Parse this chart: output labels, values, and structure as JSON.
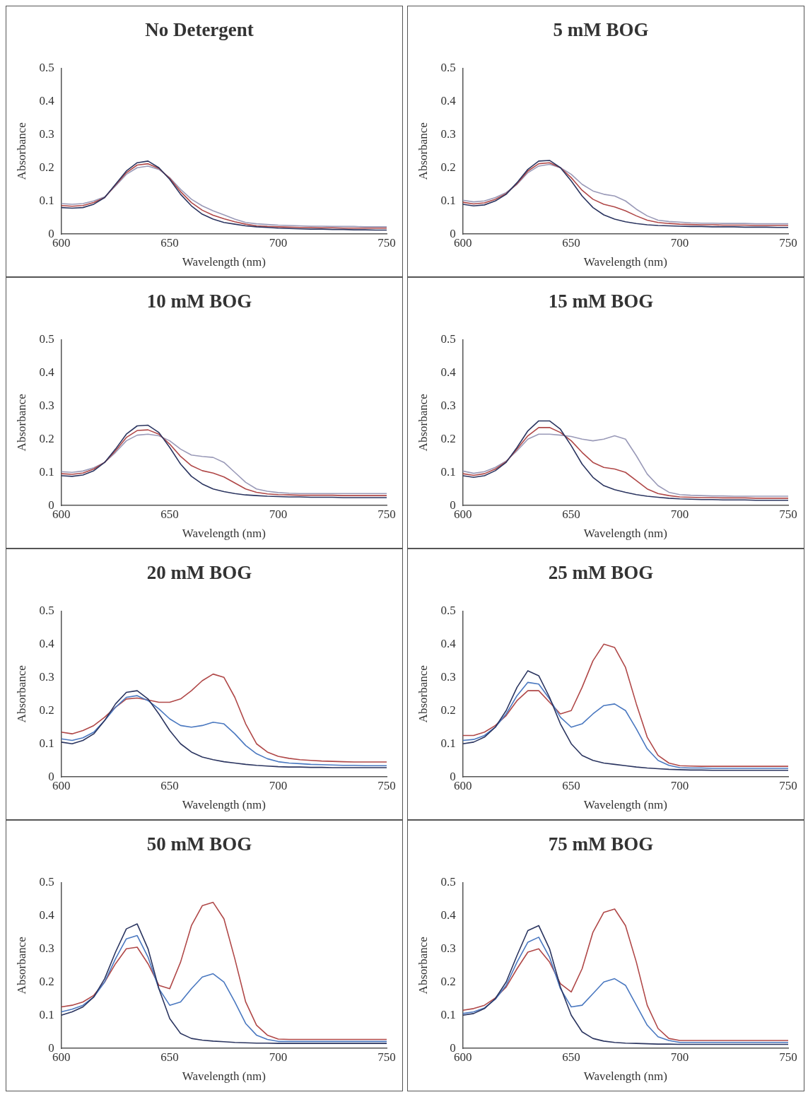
{
  "chart_data": [
    {
      "type": "line",
      "title": "No Detergent",
      "xlabel": "Wavelength (nm)",
      "ylabel": "Absorbance",
      "marker": "none",
      "xlim": [
        600,
        750
      ],
      "xticks": [
        600,
        650,
        700,
        750
      ],
      "ylim": [
        0,
        0.5
      ],
      "yticks": [
        0,
        0.1,
        0.2,
        0.3,
        0.4,
        0.5
      ],
      "x": [
        600,
        605,
        610,
        615,
        620,
        625,
        630,
        635,
        640,
        645,
        650,
        655,
        660,
        665,
        670,
        675,
        680,
        685,
        690,
        695,
        700,
        705,
        710,
        715,
        720,
        725,
        730,
        735,
        740,
        745,
        750
      ],
      "series": [
        {
          "color": "#2b3560",
          "values": [
            0.08,
            0.078,
            0.08,
            0.09,
            0.11,
            0.15,
            0.19,
            0.215,
            0.22,
            0.2,
            0.165,
            0.12,
            0.085,
            0.06,
            0.045,
            0.035,
            0.03,
            0.025,
            0.022,
            0.02,
            0.018,
            0.017,
            0.016,
            0.015,
            0.015,
            0.014,
            0.014,
            0.013,
            0.013,
            0.012,
            0.012
          ]
        },
        {
          "color": "#b04848",
          "values": [
            0.086,
            0.084,
            0.086,
            0.095,
            0.11,
            0.148,
            0.185,
            0.208,
            0.212,
            0.198,
            0.168,
            0.128,
            0.095,
            0.072,
            0.057,
            0.046,
            0.037,
            0.03,
            0.025,
            0.023,
            0.022,
            0.021,
            0.02,
            0.02,
            0.019,
            0.019,
            0.018,
            0.018,
            0.018,
            0.018,
            0.018
          ]
        },
        {
          "color": "#9a9ab8",
          "values": [
            0.092,
            0.09,
            0.092,
            0.1,
            0.112,
            0.145,
            0.18,
            0.2,
            0.205,
            0.195,
            0.17,
            0.135,
            0.105,
            0.085,
            0.07,
            0.058,
            0.045,
            0.035,
            0.031,
            0.029,
            0.027,
            0.026,
            0.025,
            0.024,
            0.024,
            0.023,
            0.023,
            0.023,
            0.022,
            0.022,
            0.022
          ]
        }
      ]
    },
    {
      "type": "line",
      "title": "5 mM BOG",
      "xlabel": "Wavelength (nm)",
      "ylabel": "Absorbance",
      "marker": "none",
      "xlim": [
        600,
        750
      ],
      "xticks": [
        600,
        650,
        700,
        750
      ],
      "ylim": [
        0,
        0.5
      ],
      "yticks": [
        0,
        0.1,
        0.2,
        0.3,
        0.4,
        0.5
      ],
      "x": [
        600,
        605,
        610,
        615,
        620,
        625,
        630,
        635,
        640,
        645,
        650,
        655,
        660,
        665,
        670,
        675,
        680,
        685,
        690,
        695,
        700,
        705,
        710,
        715,
        720,
        725,
        730,
        735,
        740,
        745,
        750
      ],
      "series": [
        {
          "color": "#2b3560",
          "values": [
            0.09,
            0.085,
            0.088,
            0.1,
            0.12,
            0.155,
            0.195,
            0.22,
            0.222,
            0.2,
            0.16,
            0.115,
            0.08,
            0.058,
            0.045,
            0.037,
            0.032,
            0.028,
            0.026,
            0.025,
            0.024,
            0.023,
            0.023,
            0.022,
            0.022,
            0.022,
            0.021,
            0.021,
            0.021,
            0.02,
            0.02
          ]
        },
        {
          "color": "#b04848",
          "values": [
            0.096,
            0.091,
            0.094,
            0.105,
            0.122,
            0.152,
            0.19,
            0.212,
            0.215,
            0.2,
            0.17,
            0.132,
            0.105,
            0.09,
            0.082,
            0.07,
            0.055,
            0.042,
            0.035,
            0.032,
            0.03,
            0.029,
            0.028,
            0.028,
            0.027,
            0.027,
            0.027,
            0.026,
            0.026,
            0.026,
            0.026
          ]
        },
        {
          "color": "#9a9ab8",
          "values": [
            0.102,
            0.097,
            0.1,
            0.11,
            0.125,
            0.15,
            0.185,
            0.205,
            0.21,
            0.2,
            0.18,
            0.15,
            0.13,
            0.12,
            0.115,
            0.1,
            0.075,
            0.055,
            0.042,
            0.038,
            0.036,
            0.034,
            0.033,
            0.033,
            0.032,
            0.032,
            0.032,
            0.031,
            0.031,
            0.031,
            0.031
          ]
        }
      ]
    },
    {
      "type": "line",
      "title": "10 mM BOG",
      "xlabel": "Wavelength (nm)",
      "ylabel": "Absorbance",
      "marker": "none",
      "xlim": [
        600,
        750
      ],
      "xticks": [
        600,
        650,
        700,
        750
      ],
      "ylim": [
        0,
        0.5
      ],
      "yticks": [
        0,
        0.1,
        0.2,
        0.3,
        0.4,
        0.5
      ],
      "x": [
        600,
        605,
        610,
        615,
        620,
        625,
        630,
        635,
        640,
        645,
        650,
        655,
        660,
        665,
        670,
        675,
        680,
        685,
        690,
        695,
        700,
        705,
        710,
        715,
        720,
        725,
        730,
        735,
        740,
        745,
        750
      ],
      "series": [
        {
          "color": "#2b3560",
          "values": [
            0.09,
            0.088,
            0.092,
            0.105,
            0.13,
            0.17,
            0.215,
            0.24,
            0.242,
            0.22,
            0.175,
            0.125,
            0.088,
            0.065,
            0.05,
            0.042,
            0.036,
            0.032,
            0.03,
            0.028,
            0.027,
            0.026,
            0.026,
            0.025,
            0.025,
            0.025,
            0.024,
            0.024,
            0.024,
            0.024,
            0.024
          ]
        },
        {
          "color": "#b04848",
          "values": [
            0.096,
            0.094,
            0.098,
            0.11,
            0.13,
            0.165,
            0.205,
            0.226,
            0.228,
            0.215,
            0.185,
            0.148,
            0.12,
            0.105,
            0.098,
            0.086,
            0.068,
            0.05,
            0.04,
            0.035,
            0.033,
            0.032,
            0.031,
            0.031,
            0.031,
            0.031,
            0.03,
            0.03,
            0.03,
            0.03,
            0.03
          ]
        },
        {
          "color": "#9a9ab8",
          "values": [
            0.102,
            0.1,
            0.104,
            0.114,
            0.13,
            0.16,
            0.195,
            0.212,
            0.215,
            0.21,
            0.195,
            0.17,
            0.152,
            0.148,
            0.145,
            0.13,
            0.1,
            0.07,
            0.05,
            0.043,
            0.039,
            0.037,
            0.036,
            0.036,
            0.036,
            0.036,
            0.036,
            0.036,
            0.036,
            0.036,
            0.036
          ]
        }
      ]
    },
    {
      "type": "line",
      "title": "15 mM BOG",
      "xlabel": "Wavelength (nm)",
      "ylabel": "Absorbance",
      "marker": "none",
      "xlim": [
        600,
        750
      ],
      "xticks": [
        600,
        650,
        700,
        750
      ],
      "ylim": [
        0,
        0.5
      ],
      "yticks": [
        0,
        0.1,
        0.2,
        0.3,
        0.4,
        0.5
      ],
      "x": [
        600,
        605,
        610,
        615,
        620,
        625,
        630,
        635,
        640,
        645,
        650,
        655,
        660,
        665,
        670,
        675,
        680,
        685,
        690,
        695,
        700,
        705,
        710,
        715,
        720,
        725,
        730,
        735,
        740,
        745,
        750
      ],
      "series": [
        {
          "color": "#2b3560",
          "values": [
            0.09,
            0.085,
            0.09,
            0.105,
            0.13,
            0.175,
            0.225,
            0.255,
            0.255,
            0.23,
            0.18,
            0.125,
            0.085,
            0.06,
            0.048,
            0.04,
            0.033,
            0.028,
            0.025,
            0.022,
            0.02,
            0.019,
            0.018,
            0.018,
            0.017,
            0.017,
            0.017,
            0.016,
            0.016,
            0.016,
            0.016
          ]
        },
        {
          "color": "#b04848",
          "values": [
            0.096,
            0.091,
            0.096,
            0.11,
            0.132,
            0.17,
            0.21,
            0.235,
            0.235,
            0.22,
            0.195,
            0.16,
            0.13,
            0.115,
            0.11,
            0.1,
            0.075,
            0.05,
            0.036,
            0.03,
            0.026,
            0.025,
            0.024,
            0.024,
            0.023,
            0.023,
            0.023,
            0.022,
            0.022,
            0.022,
            0.022
          ]
        },
        {
          "color": "#9a9ab8",
          "values": [
            0.104,
            0.097,
            0.102,
            0.115,
            0.134,
            0.165,
            0.2,
            0.215,
            0.215,
            0.212,
            0.208,
            0.2,
            0.195,
            0.2,
            0.21,
            0.2,
            0.15,
            0.095,
            0.06,
            0.04,
            0.033,
            0.031,
            0.03,
            0.029,
            0.029,
            0.028,
            0.028,
            0.028,
            0.028,
            0.028,
            0.028
          ]
        }
      ]
    },
    {
      "type": "line",
      "title": "20 mM BOG",
      "xlabel": "Wavelength (nm)",
      "ylabel": "Absorbance",
      "marker": "none",
      "xlim": [
        600,
        750
      ],
      "xticks": [
        600,
        650,
        700,
        750
      ],
      "ylim": [
        0,
        0.5
      ],
      "yticks": [
        0,
        0.1,
        0.2,
        0.3,
        0.4,
        0.5
      ],
      "x": [
        600,
        605,
        610,
        615,
        620,
        625,
        630,
        635,
        640,
        645,
        650,
        655,
        660,
        665,
        670,
        675,
        680,
        685,
        690,
        695,
        700,
        705,
        710,
        715,
        720,
        725,
        730,
        735,
        740,
        745,
        750
      ],
      "series": [
        {
          "color": "#2b3560",
          "values": [
            0.105,
            0.1,
            0.11,
            0.13,
            0.17,
            0.22,
            0.255,
            0.26,
            0.235,
            0.19,
            0.14,
            0.1,
            0.075,
            0.06,
            0.052,
            0.046,
            0.042,
            0.038,
            0.035,
            0.033,
            0.031,
            0.03,
            0.03,
            0.029,
            0.029,
            0.028,
            0.028,
            0.028,
            0.028,
            0.028,
            0.028
          ]
        },
        {
          "color": "#4a78c0",
          "values": [
            0.115,
            0.11,
            0.118,
            0.135,
            0.17,
            0.21,
            0.24,
            0.245,
            0.23,
            0.205,
            0.175,
            0.155,
            0.15,
            0.155,
            0.165,
            0.16,
            0.13,
            0.095,
            0.07,
            0.055,
            0.046,
            0.042,
            0.04,
            0.038,
            0.037,
            0.036,
            0.035,
            0.035,
            0.034,
            0.034,
            0.034
          ]
        },
        {
          "color": "#b04848",
          "values": [
            0.135,
            0.13,
            0.14,
            0.155,
            0.18,
            0.21,
            0.235,
            0.238,
            0.232,
            0.225,
            0.225,
            0.235,
            0.26,
            0.29,
            0.31,
            0.3,
            0.24,
            0.16,
            0.1,
            0.075,
            0.062,
            0.056,
            0.052,
            0.05,
            0.048,
            0.047,
            0.046,
            0.045,
            0.045,
            0.045,
            0.045
          ]
        }
      ]
    },
    {
      "type": "line",
      "title": "25 mM BOG",
      "xlabel": "Wavelength (nm)",
      "ylabel": "Absorbance",
      "marker": "none",
      "xlim": [
        600,
        750
      ],
      "xticks": [
        600,
        650,
        700,
        750
      ],
      "ylim": [
        0,
        0.5
      ],
      "yticks": [
        0,
        0.1,
        0.2,
        0.3,
        0.4,
        0.5
      ],
      "x": [
        600,
        605,
        610,
        615,
        620,
        625,
        630,
        635,
        640,
        645,
        650,
        655,
        660,
        665,
        670,
        675,
        680,
        685,
        690,
        695,
        700,
        705,
        710,
        715,
        720,
        725,
        730,
        735,
        740,
        745,
        750
      ],
      "series": [
        {
          "color": "#2b3560",
          "values": [
            0.1,
            0.105,
            0.12,
            0.15,
            0.2,
            0.27,
            0.32,
            0.305,
            0.24,
            0.16,
            0.1,
            0.065,
            0.05,
            0.042,
            0.038,
            0.034,
            0.03,
            0.027,
            0.025,
            0.023,
            0.022,
            0.021,
            0.021,
            0.02,
            0.02,
            0.02,
            0.02,
            0.02,
            0.02,
            0.02,
            0.02
          ]
        },
        {
          "color": "#4a78c0",
          "values": [
            0.11,
            0.113,
            0.125,
            0.15,
            0.19,
            0.245,
            0.285,
            0.28,
            0.235,
            0.18,
            0.15,
            0.16,
            0.19,
            0.215,
            0.22,
            0.2,
            0.145,
            0.085,
            0.05,
            0.035,
            0.028,
            0.027,
            0.027,
            0.026,
            0.026,
            0.026,
            0.026,
            0.026,
            0.026,
            0.026,
            0.026
          ]
        },
        {
          "color": "#b04848",
          "values": [
            0.125,
            0.125,
            0.135,
            0.155,
            0.185,
            0.23,
            0.26,
            0.26,
            0.225,
            0.19,
            0.2,
            0.27,
            0.35,
            0.4,
            0.39,
            0.33,
            0.22,
            0.12,
            0.065,
            0.042,
            0.034,
            0.033,
            0.032,
            0.032,
            0.032,
            0.032,
            0.032,
            0.032,
            0.032,
            0.032,
            0.032
          ]
        }
      ]
    },
    {
      "type": "line",
      "title": "50 mM BOG",
      "xlabel": "Wavelength (nm)",
      "ylabel": "Absorbance",
      "marker": "none",
      "xlim": [
        600,
        750
      ],
      "xticks": [
        600,
        650,
        700,
        750
      ],
      "ylim": [
        0,
        0.5
      ],
      "yticks": [
        0,
        0.1,
        0.2,
        0.3,
        0.4,
        0.5
      ],
      "x": [
        600,
        605,
        610,
        615,
        620,
        625,
        630,
        635,
        640,
        645,
        650,
        655,
        660,
        665,
        670,
        675,
        680,
        685,
        690,
        695,
        700,
        705,
        710,
        715,
        720,
        725,
        730,
        735,
        740,
        745,
        750
      ],
      "series": [
        {
          "color": "#2b3560",
          "values": [
            0.1,
            0.11,
            0.125,
            0.155,
            0.21,
            0.29,
            0.36,
            0.375,
            0.3,
            0.18,
            0.09,
            0.045,
            0.03,
            0.025,
            0.022,
            0.02,
            0.018,
            0.017,
            0.016,
            0.016,
            0.015,
            0.015,
            0.015,
            0.015,
            0.015,
            0.015,
            0.015,
            0.015,
            0.015,
            0.015,
            0.015
          ]
        },
        {
          "color": "#4a78c0",
          "values": [
            0.11,
            0.118,
            0.13,
            0.155,
            0.2,
            0.27,
            0.33,
            0.34,
            0.275,
            0.18,
            0.13,
            0.14,
            0.18,
            0.215,
            0.225,
            0.2,
            0.14,
            0.075,
            0.04,
            0.027,
            0.021,
            0.021,
            0.021,
            0.021,
            0.021,
            0.021,
            0.021,
            0.021,
            0.021,
            0.021,
            0.021
          ]
        },
        {
          "color": "#b04848",
          "values": [
            0.125,
            0.13,
            0.14,
            0.16,
            0.2,
            0.255,
            0.3,
            0.305,
            0.255,
            0.19,
            0.18,
            0.26,
            0.37,
            0.43,
            0.44,
            0.39,
            0.27,
            0.14,
            0.07,
            0.04,
            0.028,
            0.027,
            0.027,
            0.027,
            0.027,
            0.027,
            0.027,
            0.027,
            0.027,
            0.027,
            0.027
          ]
        }
      ]
    },
    {
      "type": "line",
      "title": "75 mM BOG",
      "xlabel": "Wavelength (nm)",
      "ylabel": "Absorbance",
      "marker": "none",
      "xlim": [
        600,
        750
      ],
      "xticks": [
        600,
        650,
        700,
        750
      ],
      "ylim": [
        0,
        0.5
      ],
      "yticks": [
        0,
        0.1,
        0.2,
        0.3,
        0.4,
        0.5
      ],
      "x": [
        600,
        605,
        610,
        615,
        620,
        625,
        630,
        635,
        640,
        645,
        650,
        655,
        660,
        665,
        670,
        675,
        680,
        685,
        690,
        695,
        700,
        705,
        710,
        715,
        720,
        725,
        730,
        735,
        740,
        745,
        750
      ],
      "series": [
        {
          "color": "#2b3560",
          "values": [
            0.1,
            0.105,
            0.12,
            0.15,
            0.2,
            0.28,
            0.355,
            0.37,
            0.3,
            0.185,
            0.1,
            0.05,
            0.03,
            0.022,
            0.018,
            0.016,
            0.015,
            0.014,
            0.013,
            0.013,
            0.012,
            0.012,
            0.012,
            0.012,
            0.012,
            0.012,
            0.012,
            0.012,
            0.012,
            0.012,
            0.012
          ]
        },
        {
          "color": "#4a78c0",
          "values": [
            0.105,
            0.11,
            0.122,
            0.148,
            0.19,
            0.26,
            0.32,
            0.335,
            0.275,
            0.18,
            0.125,
            0.13,
            0.165,
            0.2,
            0.21,
            0.19,
            0.13,
            0.07,
            0.035,
            0.024,
            0.018,
            0.018,
            0.018,
            0.018,
            0.018,
            0.018,
            0.018,
            0.018,
            0.018,
            0.018,
            0.018
          ]
        },
        {
          "color": "#b04848",
          "values": [
            0.115,
            0.12,
            0.13,
            0.152,
            0.185,
            0.24,
            0.29,
            0.3,
            0.26,
            0.195,
            0.17,
            0.24,
            0.35,
            0.41,
            0.42,
            0.37,
            0.26,
            0.13,
            0.06,
            0.03,
            0.024,
            0.024,
            0.024,
            0.024,
            0.024,
            0.024,
            0.024,
            0.024,
            0.024,
            0.024,
            0.024
          ]
        }
      ]
    }
  ]
}
